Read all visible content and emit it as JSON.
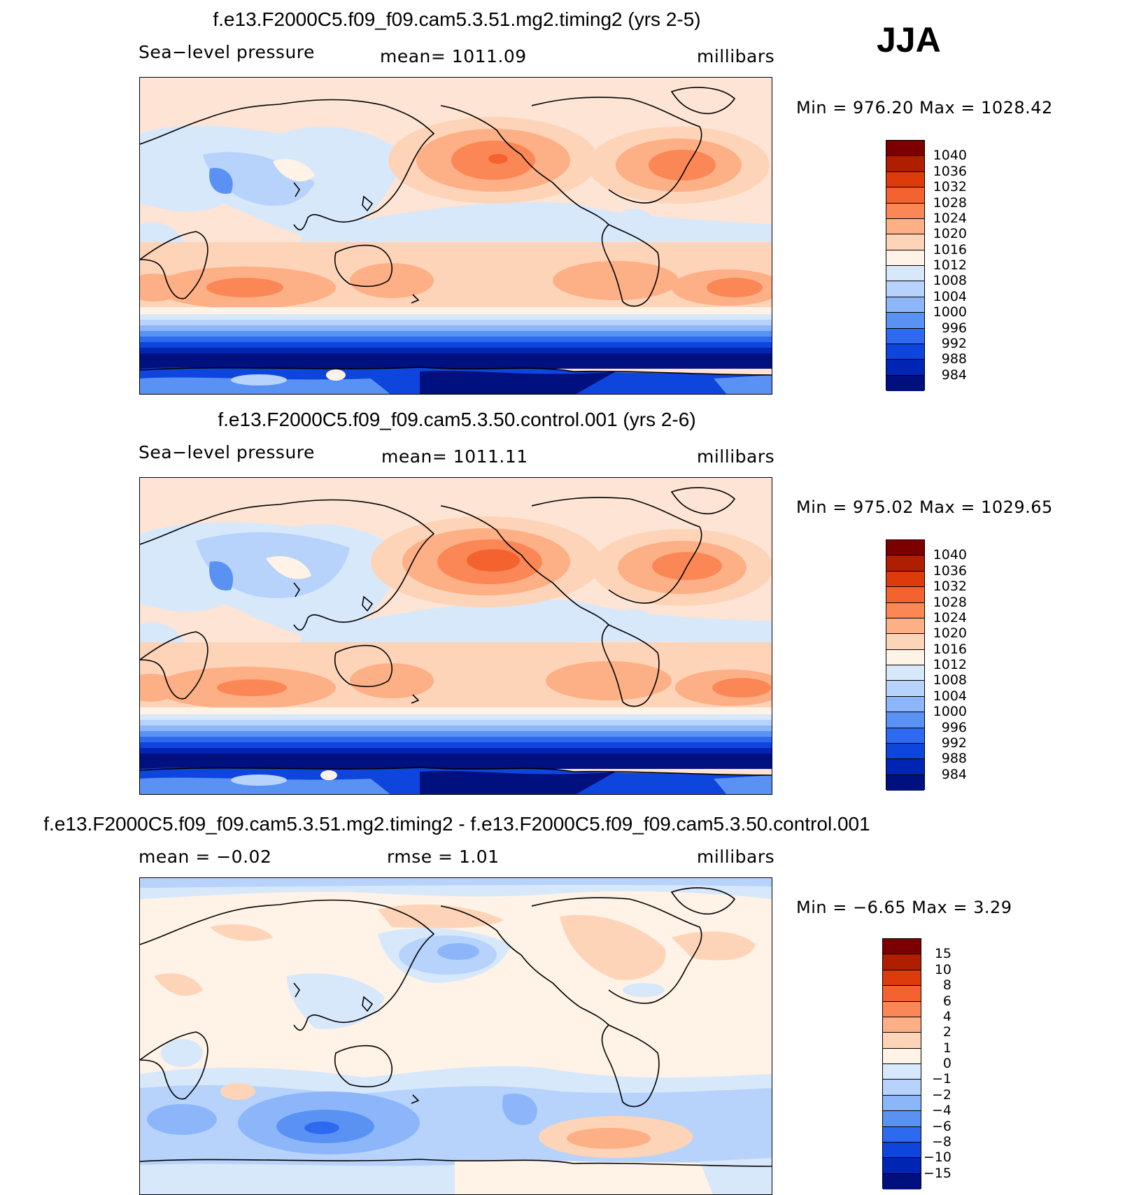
{
  "season": "JJA",
  "units": "millibars",
  "panels": [
    {
      "title": "f.e13.F2000C5.f09_f09.cam5.3.51.mg2.timing2 (yrs 2-5)",
      "variable": "Sea−level pressure",
      "mean_label": "mean=  1011.09",
      "units": "millibars",
      "minmax": "Min  =  976.20  Max  =  1028.42",
      "colorbar": {
        "labels": [
          "1040",
          "1036",
          "1032",
          "1028",
          "1024",
          "1020",
          "1016",
          "1012",
          "1008",
          "1004",
          "1000",
          "996",
          "992",
          "988",
          "984"
        ],
        "colors": [
          "#7d0000",
          "#b01e00",
          "#dd3b0c",
          "#f4622f",
          "#fb8756",
          "#fdaf86",
          "#fdd4b8",
          "#fff2e6",
          "#d7e8fb",
          "#b7d3fb",
          "#8db6fa",
          "#5a92f4",
          "#2e6af0",
          "#0e45dc",
          "#0024b4",
          "#00107e"
        ]
      }
    },
    {
      "title": "f.e13.F2000C5.f09_f09.cam5.3.50.control.001 (yrs 2-6)",
      "variable": "Sea−level pressure",
      "mean_label": "mean=  1011.11",
      "units": "millibars",
      "minmax": "Min  =  975.02  Max  =  1029.65",
      "colorbar": {
        "labels": [
          "1040",
          "1036",
          "1032",
          "1028",
          "1024",
          "1020",
          "1016",
          "1012",
          "1008",
          "1004",
          "1000",
          "996",
          "992",
          "988",
          "984"
        ],
        "colors": [
          "#7d0000",
          "#b01e00",
          "#dd3b0c",
          "#f4622f",
          "#fb8756",
          "#fdaf86",
          "#fdd4b8",
          "#fff2e6",
          "#d7e8fb",
          "#b7d3fb",
          "#8db6fa",
          "#5a92f4",
          "#2e6af0",
          "#0e45dc",
          "#0024b4",
          "#00107e"
        ]
      }
    },
    {
      "title": "f.e13.F2000C5.f09_f09.cam5.3.51.mg2.timing2 - f.e13.F2000C5.f09_f09.cam5.3.50.control.001",
      "mean_label": "mean  =    −0.02",
      "rmse_label": "rmse  =      1.01",
      "units": "millibars",
      "minmax": "Min  =    −6.65  Max  =      3.29",
      "colorbar": {
        "labels": [
          "15",
          "10",
          "8",
          "6",
          "4",
          "2",
          "1",
          "0",
          "−1",
          "−2",
          "−4",
          "−6",
          "−8",
          "−10",
          "−15"
        ],
        "colors": [
          "#7d0000",
          "#b01e00",
          "#dd3b0c",
          "#f4622f",
          "#fb8756",
          "#fdaf86",
          "#fdd4b8",
          "#fff2e6",
          "#d7e8fb",
          "#b7d3fb",
          "#8db6fa",
          "#5a92f4",
          "#2e6af0",
          "#0e45dc",
          "#0024b4",
          "#00107e"
        ]
      }
    }
  ]
}
